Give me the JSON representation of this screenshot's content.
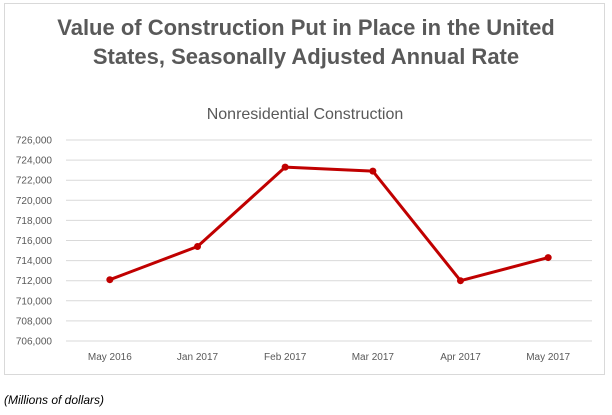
{
  "header": {
    "title_line1": "Value of Construction Put in Place in the United",
    "title_line2": "States, Seasonally Adjusted Annual Rate"
  },
  "footnote": "(Millions of dollars)",
  "chart_data": {
    "type": "line",
    "title": "Nonresidential Construction",
    "xlabel": "",
    "ylabel": "",
    "categories": [
      "May 2016",
      "Jan 2017",
      "Feb 2017",
      "Mar 2017",
      "Apr 2017",
      "May 2017"
    ],
    "series": [
      {
        "values": [
          712100,
          715400,
          723300,
          722900,
          712000,
          714300
        ]
      }
    ],
    "ylim": [
      706000,
      726000
    ],
    "yticks": [
      706000,
      708000,
      710000,
      712000,
      714000,
      716000,
      718000,
      720000,
      722000,
      724000,
      726000
    ],
    "ytick_labels": [
      "706,000",
      "708,000",
      "710,000",
      "712,000",
      "714,000",
      "716,000",
      "718,000",
      "720,000",
      "722,000",
      "724,000",
      "726,000"
    ],
    "grid": true,
    "legend": "none",
    "colors": {
      "line": "#c00000",
      "grid": "#d9d9d9",
      "text": "#595959"
    }
  }
}
